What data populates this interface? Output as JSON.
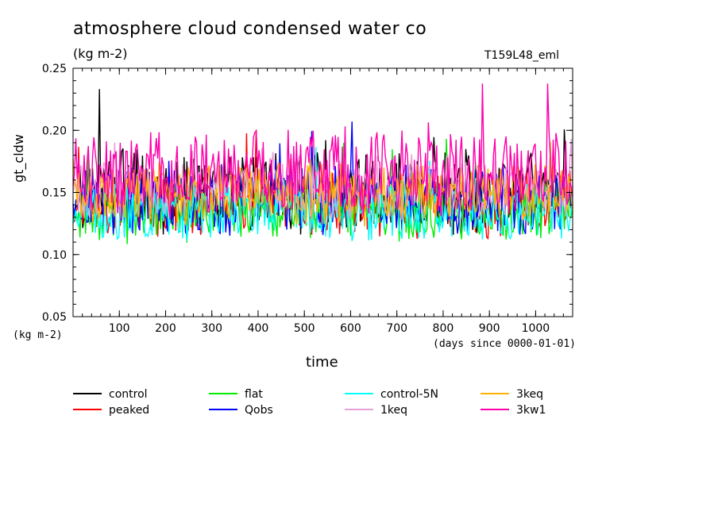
{
  "header": {
    "title": "atmosphere cloud condensed water co",
    "unit": "(kg m-2)",
    "run_name": "T159L48_eml"
  },
  "chart_data": {
    "type": "line",
    "title": "atmosphere cloud condensed water co",
    "xlabel": "time",
    "xlabel_unit": "(days since 0000-01-01)",
    "ylabel": "gt_cldw",
    "ylabel_unit": "(kg m-2)",
    "xlim": [
      0,
      1080
    ],
    "ylim": [
      0.05,
      0.25
    ],
    "xticks": [
      100,
      200,
      300,
      400,
      500,
      600,
      700,
      800,
      900,
      1000
    ],
    "yticks": [
      0.05,
      0.1,
      0.15,
      0.2,
      0.25
    ],
    "ytick_labels": [
      "0.05",
      "0.10",
      "0.15",
      "0.20",
      "0.25"
    ],
    "grid": false,
    "legend_position": "bottom",
    "series": [
      {
        "name": "control",
        "color": "#000000",
        "mean": 0.15,
        "amp": 0.028
      },
      {
        "name": "peaked",
        "color": "#ff0000",
        "mean": 0.14,
        "amp": 0.022
      },
      {
        "name": "flat",
        "color": "#00ee00",
        "mean": 0.135,
        "amp": 0.022
      },
      {
        "name": "Qobs",
        "color": "#0000ff",
        "mean": 0.145,
        "amp": 0.025
      },
      {
        "name": "control-5N",
        "color": "#00ffff",
        "mean": 0.135,
        "amp": 0.02
      },
      {
        "name": "1keq",
        "color": "#e8a0d8",
        "mean": 0.155,
        "amp": 0.022
      },
      {
        "name": "3keq",
        "color": "#ffb000",
        "mean": 0.15,
        "amp": 0.022
      },
      {
        "name": "3kw1",
        "color": "#ff00aa",
        "mean": 0.165,
        "amp": 0.03
      }
    ]
  }
}
